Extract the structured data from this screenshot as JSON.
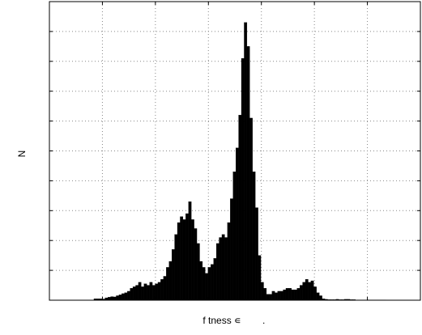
{
  "chart_data": {
    "type": "bar",
    "title": "",
    "xlabel": "f tness ∊",
    "xlabel_trailing_mark": ".",
    "ylabel": "N",
    "grid": true,
    "grid_style": "dotted",
    "bar_color": "#000000",
    "xlim": [
      0,
      1
    ],
    "ylim": [
      0,
      1
    ],
    "bin_width": 0.0075,
    "x": [
      0.12,
      0.1275,
      0.135,
      0.1425,
      0.15,
      0.1575,
      0.165,
      0.1725,
      0.18,
      0.1875,
      0.195,
      0.2025,
      0.21,
      0.2175,
      0.225,
      0.2325,
      0.24,
      0.2475,
      0.255,
      0.2625,
      0.27,
      0.2775,
      0.285,
      0.2925,
      0.3,
      0.3075,
      0.315,
      0.3225,
      0.33,
      0.3375,
      0.345,
      0.3525,
      0.36,
      0.3675,
      0.375,
      0.3825,
      0.39,
      0.3975,
      0.405,
      0.4125,
      0.42,
      0.4275,
      0.435,
      0.4425,
      0.45,
      0.4575,
      0.465,
      0.4725,
      0.48,
      0.4875,
      0.495,
      0.5025,
      0.51,
      0.5175,
      0.525,
      0.5325,
      0.54,
      0.5475,
      0.555,
      0.5625,
      0.57,
      0.5775,
      0.585,
      0.5925,
      0.6,
      0.6075,
      0.615,
      0.6225,
      0.63,
      0.6375,
      0.645,
      0.6525,
      0.66,
      0.6675,
      0.675,
      0.6825,
      0.69,
      0.6975,
      0.705,
      0.7125,
      0.72,
      0.7275,
      0.735,
      0.7425,
      0.75,
      0.7575,
      0.765,
      0.7725,
      0.78,
      0.7875,
      0.795,
      0.8025,
      0.81,
      0.8175,
      0.825,
      0.8325,
      0.84,
      0.8475,
      0.855,
      0.8625,
      0.87,
      0.8775,
      0.885,
      0.8925,
      0.9
    ],
    "values": [
      0.005,
      0.005,
      0.005,
      0.004,
      0.008,
      0.01,
      0.012,
      0.011,
      0.015,
      0.018,
      0.022,
      0.025,
      0.03,
      0.04,
      0.045,
      0.05,
      0.06,
      0.045,
      0.055,
      0.05,
      0.06,
      0.05,
      0.055,
      0.06,
      0.07,
      0.08,
      0.11,
      0.13,
      0.17,
      0.22,
      0.26,
      0.28,
      0.27,
      0.29,
      0.33,
      0.27,
      0.24,
      0.19,
      0.13,
      0.11,
      0.09,
      0.11,
      0.12,
      0.14,
      0.19,
      0.21,
      0.22,
      0.21,
      0.26,
      0.34,
      0.43,
      0.51,
      0.62,
      0.81,
      0.93,
      0.85,
      0.61,
      0.43,
      0.31,
      0.15,
      0.06,
      0.04,
      0.02,
      0.02,
      0.03,
      0.025,
      0.03,
      0.03,
      0.035,
      0.04,
      0.04,
      0.035,
      0.035,
      0.04,
      0.05,
      0.06,
      0.07,
      0.06,
      0.065,
      0.045,
      0.025,
      0.015,
      0.005,
      0.003,
      0.002,
      0.002,
      0.002,
      0.003,
      0.002,
      0.002,
      0.003,
      0.003,
      0.002,
      0.002,
      0.001,
      0.001,
      0.001,
      0.001,
      0.001,
      0.001,
      0.001,
      0.001,
      0.001,
      0.001,
      0.001
    ]
  }
}
